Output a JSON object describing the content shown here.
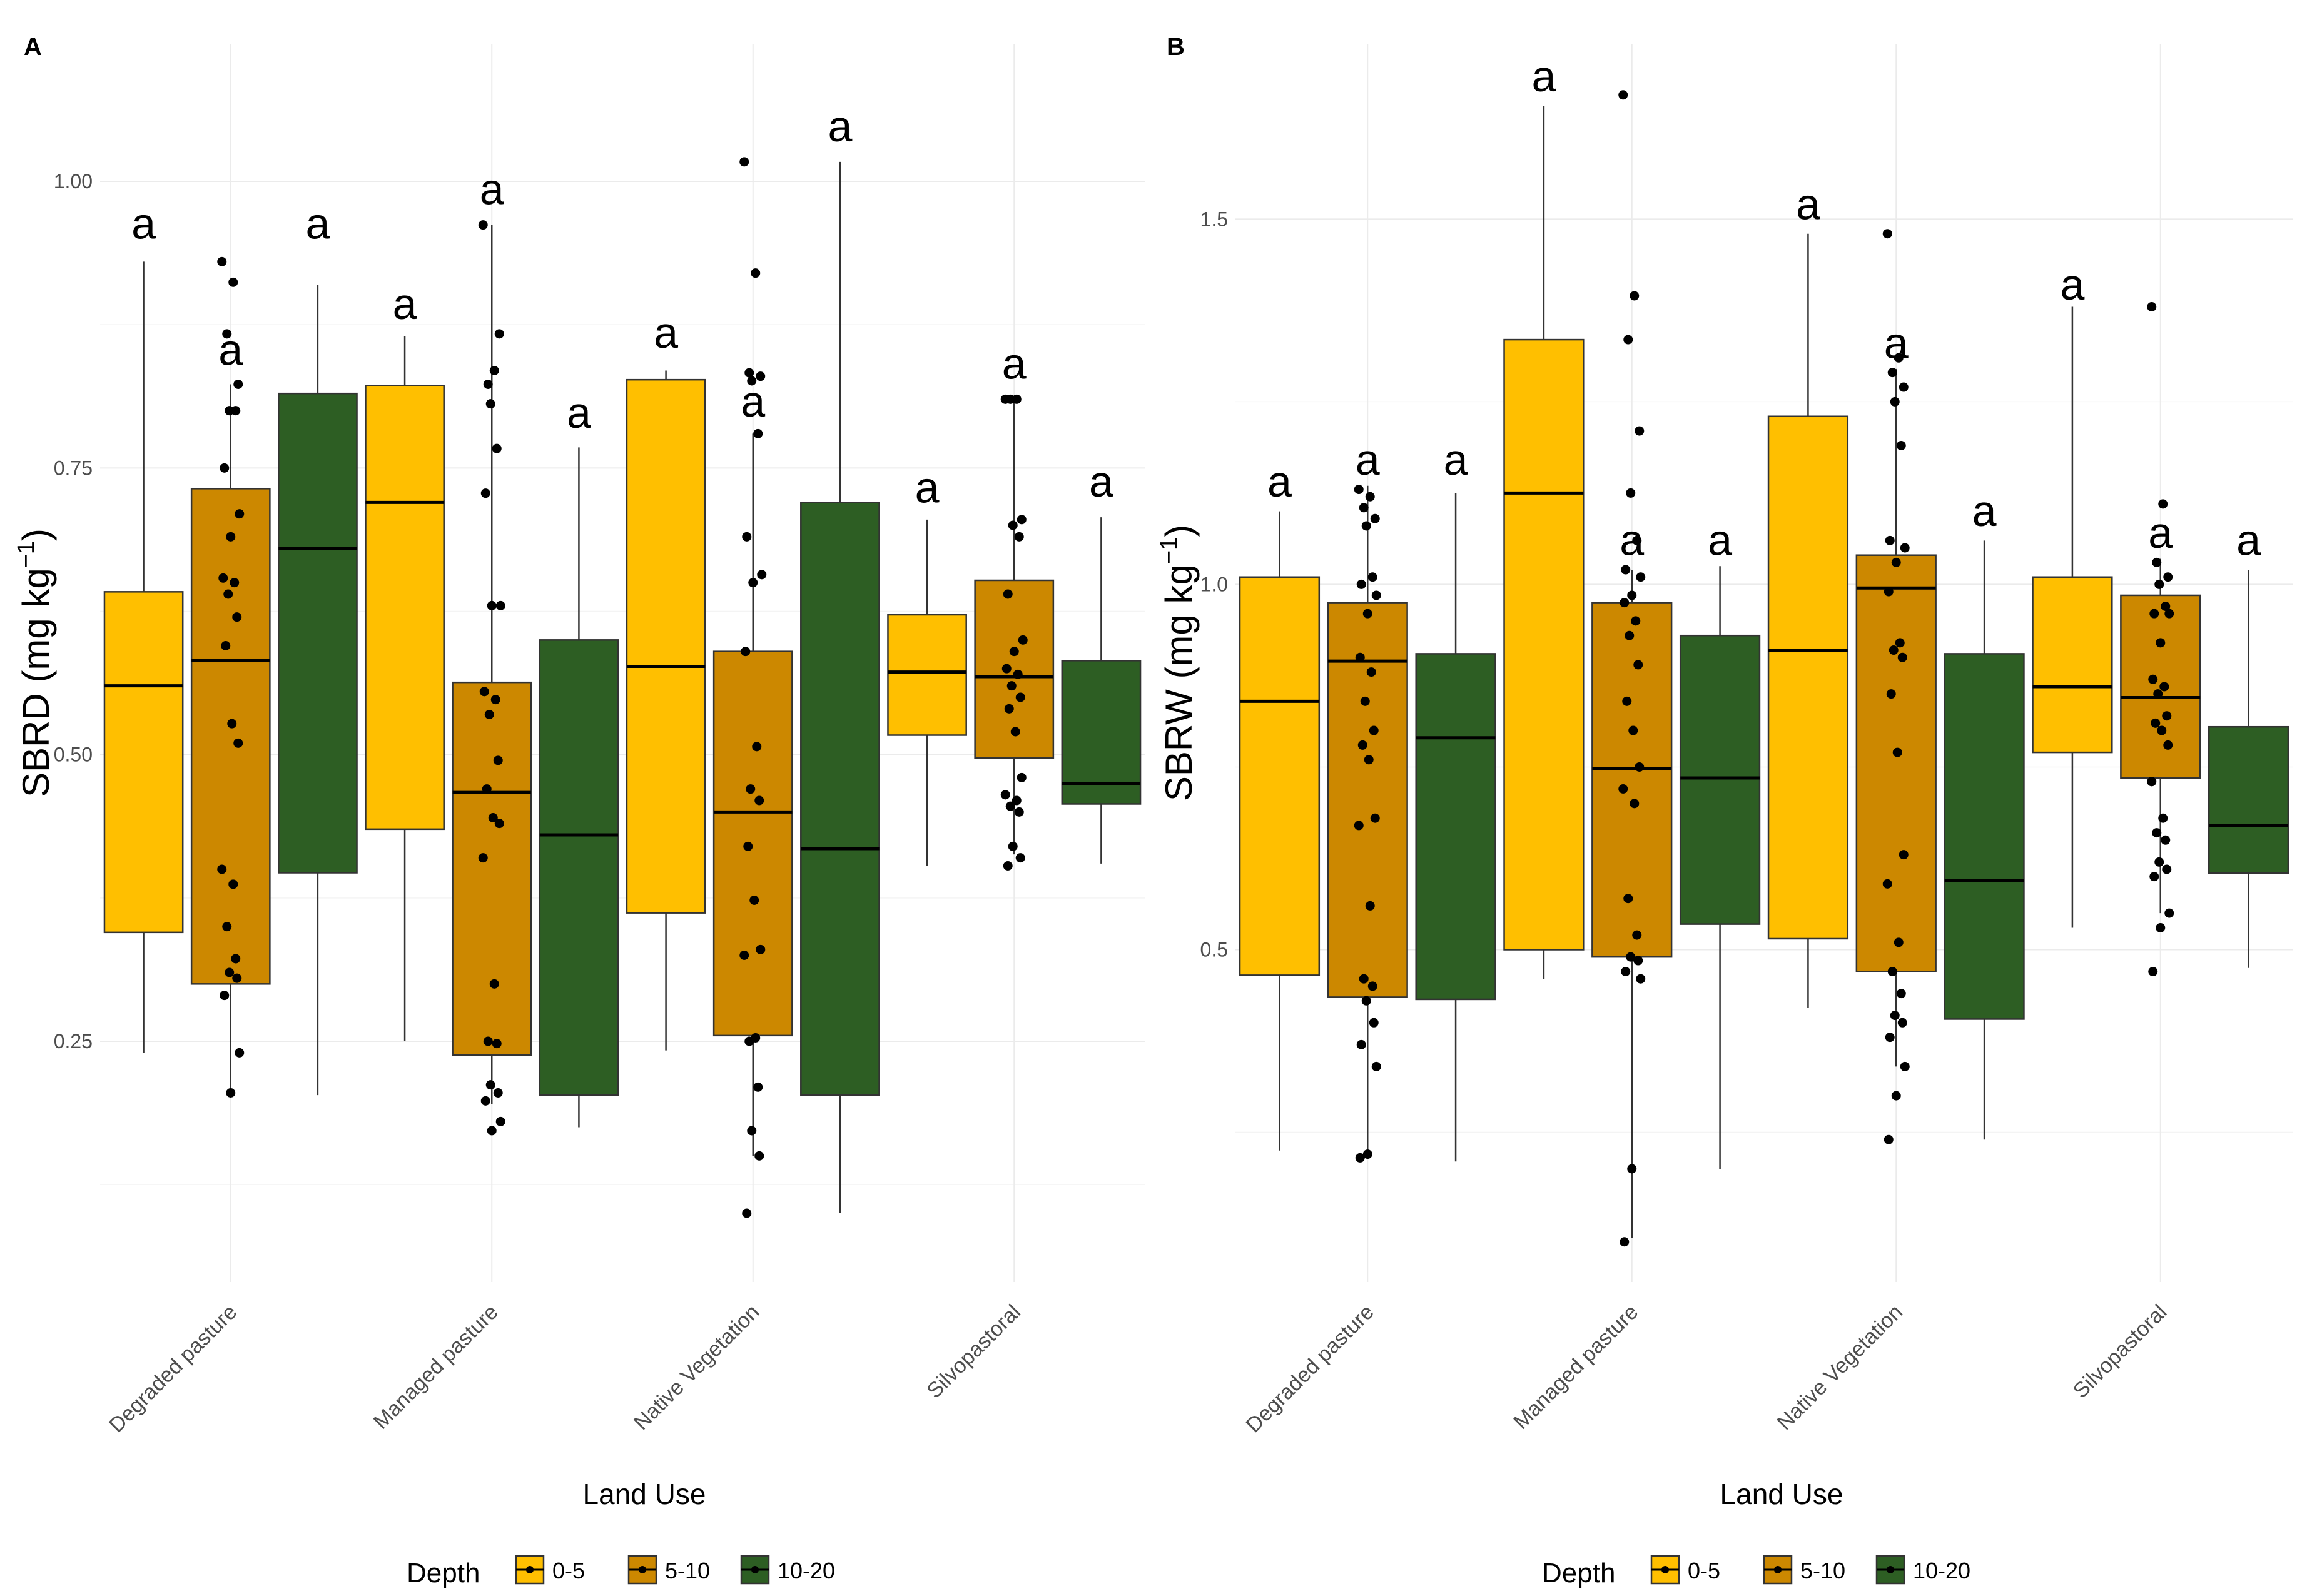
{
  "colors": {
    "0-5": "#FFBF00",
    "5-10": "#CC8800",
    "10-20": "#2D5E23"
  },
  "legend": {
    "title": "Depth",
    "items": [
      "0-5",
      "5-10",
      "10-20"
    ]
  },
  "chart_data": [
    {
      "panel": "A",
      "type": "boxplot",
      "ylabel_main": "SBRD (mg kg",
      "ylabel_sup": "−1",
      "ylabel_end": ")",
      "xlabel": "Land Use",
      "categories": [
        "Degraded pasture",
        "Managed pasture",
        "Native Vegetation",
        "Silvopastoral"
      ],
      "ylim": [
        0.04,
        1.12
      ],
      "yticks": [
        0.25,
        0.5,
        0.75,
        1.0
      ],
      "ytick_labels": [
        "0.25",
        "0.50",
        "0.75",
        "1.00"
      ],
      "letter": "a",
      "boxes": [
        {
          "group": 0,
          "depth": "0-5",
          "q1": 0.345,
          "median": 0.56,
          "q3": 0.642,
          "min": 0.24,
          "max": 0.93,
          "letter_y": 0.95
        },
        {
          "group": 0,
          "depth": "5-10",
          "q1": 0.3,
          "median": 0.582,
          "q3": 0.732,
          "min": 0.203,
          "max": 0.823,
          "letter_y": 0.84
        },
        {
          "group": 0,
          "depth": "10-20",
          "q1": 0.397,
          "median": 0.68,
          "q3": 0.815,
          "min": 0.203,
          "max": 0.91,
          "letter_y": 0.95
        },
        {
          "group": 1,
          "depth": "0-5",
          "q1": 0.435,
          "median": 0.72,
          "q3": 0.822,
          "min": 0.25,
          "max": 0.865,
          "letter_y": 0.88
        },
        {
          "group": 1,
          "depth": "5-10",
          "q1": 0.238,
          "median": 0.467,
          "q3": 0.563,
          "min": 0.195,
          "max": 0.962,
          "letter_y": 0.98
        },
        {
          "group": 1,
          "depth": "10-20",
          "q1": 0.203,
          "median": 0.43,
          "q3": 0.6,
          "min": 0.175,
          "max": 0.768,
          "letter_y": 0.785
        },
        {
          "group": 2,
          "depth": "0-5",
          "q1": 0.362,
          "median": 0.577,
          "q3": 0.827,
          "min": 0.242,
          "max": 0.835,
          "letter_y": 0.855
        },
        {
          "group": 2,
          "depth": "5-10",
          "q1": 0.255,
          "median": 0.45,
          "q3": 0.59,
          "min": 0.15,
          "max": 0.78,
          "letter_y": 0.795
        },
        {
          "group": 2,
          "depth": "10-20",
          "q1": 0.203,
          "median": 0.418,
          "q3": 0.72,
          "min": 0.1,
          "max": 1.017,
          "letter_y": 1.035
        },
        {
          "group": 3,
          "depth": "0-5",
          "q1": 0.517,
          "median": 0.572,
          "q3": 0.622,
          "min": 0.403,
          "max": 0.705,
          "letter_y": 0.72
        },
        {
          "group": 3,
          "depth": "5-10",
          "q1": 0.497,
          "median": 0.568,
          "q3": 0.652,
          "min": 0.413,
          "max": 0.81,
          "letter_y": 0.828
        },
        {
          "group": 3,
          "depth": "10-20",
          "q1": 0.457,
          "median": 0.475,
          "q3": 0.582,
          "min": 0.405,
          "max": 0.707,
          "letter_y": 0.725
        }
      ],
      "points": [
        {
          "group": 0,
          "values": [
            0.93,
            0.912,
            0.867,
            0.823,
            0.8,
            0.8,
            0.75,
            0.71,
            0.69,
            0.654,
            0.65,
            0.64,
            0.62,
            0.595,
            0.527,
            0.51,
            0.4,
            0.387,
            0.35,
            0.322,
            0.31,
            0.305,
            0.29,
            0.24,
            0.205
          ]
        },
        {
          "group": 1,
          "values": [
            0.962,
            0.835,
            0.823,
            0.867,
            0.806,
            0.767,
            0.728,
            0.63,
            0.63,
            0.555,
            0.548,
            0.535,
            0.495,
            0.47,
            0.445,
            0.44,
            0.41,
            0.3,
            0.25,
            0.248,
            0.212,
            0.205,
            0.198,
            0.18,
            0.172
          ]
        },
        {
          "group": 2,
          "values": [
            1.017,
            0.92,
            0.833,
            0.83,
            0.826,
            0.78,
            0.69,
            0.657,
            0.65,
            0.59,
            0.507,
            0.47,
            0.46,
            0.42,
            0.373,
            0.33,
            0.325,
            0.253,
            0.25,
            0.21,
            0.172,
            0.15,
            0.1
          ]
        },
        {
          "group": 3,
          "values": [
            0.81,
            0.81,
            0.81,
            0.705,
            0.7,
            0.69,
            0.64,
            0.6,
            0.59,
            0.575,
            0.57,
            0.56,
            0.55,
            0.54,
            0.52,
            0.48,
            0.465,
            0.46,
            0.455,
            0.45,
            0.42,
            0.41,
            0.403
          ]
        }
      ]
    },
    {
      "panel": "B",
      "type": "boxplot",
      "ylabel_main": "SBRW (mg kg",
      "ylabel_sup": "−1",
      "ylabel_end": ")",
      "xlabel": "Land Use",
      "categories": [
        "Degraded pasture",
        "Managed pasture",
        "Native Vegetation",
        "Silvopastoral"
      ],
      "ylim": [
        0.045,
        1.74
      ],
      "yticks": [
        0.5,
        1.0,
        1.5
      ],
      "ytick_labels": [
        "0.5",
        "1.0",
        "1.5"
      ],
      "letter": "a",
      "boxes": [
        {
          "group": 0,
          "depth": "0-5",
          "q1": 0.465,
          "median": 0.84,
          "q3": 1.01,
          "min": 0.225,
          "max": 1.1,
          "letter_y": 1.12
        },
        {
          "group": 0,
          "depth": "5-10",
          "q1": 0.435,
          "median": 0.895,
          "q3": 0.975,
          "min": 0.22,
          "max": 1.135,
          "letter_y": 1.15
        },
        {
          "group": 0,
          "depth": "10-20",
          "q1": 0.432,
          "median": 0.79,
          "q3": 0.905,
          "min": 0.21,
          "max": 1.125,
          "letter_y": 1.15
        },
        {
          "group": 1,
          "depth": "0-5",
          "q1": 0.5,
          "median": 1.125,
          "q3": 1.335,
          "min": 0.46,
          "max": 1.655,
          "letter_y": 1.675
        },
        {
          "group": 1,
          "depth": "5-10",
          "q1": 0.49,
          "median": 0.748,
          "q3": 0.975,
          "min": 0.105,
          "max": 1.02,
          "letter_y": 1.04
        },
        {
          "group": 1,
          "depth": "10-20",
          "q1": 0.535,
          "median": 0.735,
          "q3": 0.93,
          "min": 0.2,
          "max": 1.025,
          "letter_y": 1.04
        },
        {
          "group": 2,
          "depth": "0-5",
          "q1": 0.515,
          "median": 0.91,
          "q3": 1.23,
          "min": 0.42,
          "max": 1.48,
          "letter_y": 1.5
        },
        {
          "group": 2,
          "depth": "5-10",
          "q1": 0.47,
          "median": 0.995,
          "q3": 1.04,
          "min": 0.34,
          "max": 1.295,
          "letter_y": 1.31
        },
        {
          "group": 2,
          "depth": "10-20",
          "q1": 0.405,
          "median": 0.595,
          "q3": 0.905,
          "min": 0.24,
          "max": 1.06,
          "letter_y": 1.08
        },
        {
          "group": 3,
          "depth": "0-5",
          "q1": 0.77,
          "median": 0.86,
          "q3": 1.01,
          "min": 0.53,
          "max": 1.38,
          "letter_y": 1.39
        },
        {
          "group": 3,
          "depth": "5-10",
          "q1": 0.735,
          "median": 0.845,
          "q3": 0.985,
          "min": 0.55,
          "max": 1.035,
          "letter_y": 1.05
        },
        {
          "group": 3,
          "depth": "10-20",
          "q1": 0.605,
          "median": 0.67,
          "q3": 0.805,
          "min": 0.475,
          "max": 1.02,
          "letter_y": 1.04
        }
      ],
      "points": [
        {
          "group": 0,
          "values": [
            1.13,
            1.12,
            1.105,
            1.09,
            1.08,
            1.01,
            1.0,
            0.985,
            0.96,
            0.9,
            0.88,
            0.84,
            0.8,
            0.78,
            0.76,
            0.68,
            0.67,
            0.56,
            0.46,
            0.45,
            0.43,
            0.4,
            0.37,
            0.34,
            0.22,
            0.215
          ]
        },
        {
          "group": 1,
          "values": [
            1.67,
            1.395,
            1.335,
            1.21,
            1.125,
            1.06,
            1.02,
            1.01,
            0.985,
            0.975,
            0.95,
            0.93,
            0.89,
            0.84,
            0.8,
            0.75,
            0.72,
            0.7,
            0.57,
            0.52,
            0.49,
            0.485,
            0.47,
            0.46,
            0.2,
            0.1
          ]
        },
        {
          "group": 2,
          "values": [
            1.48,
            1.31,
            1.29,
            1.27,
            1.25,
            1.19,
            1.06,
            1.05,
            1.03,
            0.99,
            0.92,
            0.91,
            0.9,
            0.85,
            0.77,
            0.63,
            0.59,
            0.51,
            0.47,
            0.44,
            0.41,
            0.4,
            0.38,
            0.34,
            0.3,
            0.24
          ]
        },
        {
          "group": 3,
          "values": [
            1.38,
            1.11,
            1.03,
            1.01,
            1.0,
            0.97,
            0.96,
            0.96,
            0.92,
            0.87,
            0.86,
            0.85,
            0.82,
            0.81,
            0.8,
            0.78,
            0.73,
            0.68,
            0.66,
            0.65,
            0.62,
            0.61,
            0.6,
            0.55,
            0.53,
            0.47
          ]
        }
      ]
    }
  ]
}
